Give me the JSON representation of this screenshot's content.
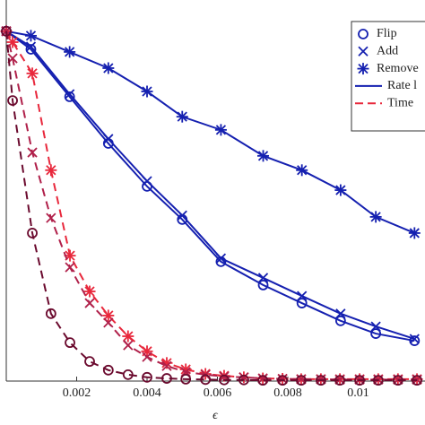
{
  "chart_data": {
    "type": "line",
    "xlabel": "ϵ",
    "xlim": [
      0,
      0.0119
    ],
    "ylim": [
      0,
      1
    ],
    "xticks": [
      0.002,
      0.004,
      0.006,
      0.008,
      0.01
    ],
    "legend": [
      {
        "label": "Flip",
        "marker": "o",
        "color": "#1520b0"
      },
      {
        "label": "Add",
        "marker": "x",
        "color": "#1520b0"
      },
      {
        "label": "Remove",
        "marker": "*",
        "color": "#1520b0"
      },
      {
        "label": "Rate l",
        "dash": false,
        "color": "#1520b0"
      },
      {
        "label": "Time",
        "dash": true,
        "color": "#e8283c"
      }
    ],
    "series": [
      {
        "marker": "*",
        "dash": false,
        "color": "#1520b0",
        "x": [
          0,
          0.0007,
          0.0018,
          0.0029,
          0.004,
          0.005,
          0.0061,
          0.0073,
          0.0084,
          0.0095,
          0.0105,
          0.0116
        ],
        "values": [
          0.929,
          0.917,
          0.874,
          0.831,
          0.769,
          0.702,
          0.667,
          0.598,
          0.56,
          0.507,
          0.436,
          0.393
        ]
      },
      {
        "marker": "x",
        "dash": false,
        "color": "#1520b0",
        "x": [
          0,
          0.0007,
          0.0018,
          0.0029,
          0.004,
          0.005,
          0.0061,
          0.0073,
          0.0084,
          0.0095,
          0.0105,
          0.0116
        ],
        "values": [
          0.929,
          0.888,
          0.762,
          0.643,
          0.531,
          0.44,
          0.326,
          0.274,
          0.226,
          0.179,
          0.145,
          0.112
        ]
      },
      {
        "marker": "o",
        "dash": false,
        "color": "#1520b0",
        "x": [
          0,
          0.0007,
          0.0018,
          0.0029,
          0.004,
          0.005,
          0.0061,
          0.0073,
          0.0084,
          0.0095,
          0.0105,
          0.0116
        ],
        "values": [
          0.929,
          0.881,
          0.755,
          0.631,
          0.517,
          0.429,
          0.317,
          0.255,
          0.207,
          0.16,
          0.126,
          0.107
        ]
      },
      {
        "marker": "*",
        "dash": true,
        "color": "#e8283c",
        "x": [
          0,
          0.00018,
          0.00074,
          0.00127,
          0.00181,
          0.00237,
          0.0029,
          0.00346,
          0.004,
          0.00456,
          0.0051,
          0.00566,
          0.00619,
          0.00675,
          0.00729,
          0.00785,
          0.00838,
          0.00894,
          0.00948,
          0.01004,
          0.01057,
          0.01113,
          0.01167
        ],
        "values": [
          0.929,
          0.9,
          0.817,
          0.56,
          0.333,
          0.238,
          0.174,
          0.119,
          0.079,
          0.048,
          0.031,
          0.019,
          0.014,
          0.01,
          0.007,
          0.006,
          0.005,
          0.005,
          0.005,
          0.005,
          0.005,
          0.005,
          0.005
        ]
      },
      {
        "marker": "x",
        "dash": true,
        "color": "#b0204a",
        "x": [
          0,
          0.00018,
          0.00074,
          0.00127,
          0.00181,
          0.00237,
          0.0029,
          0.00346,
          0.004,
          0.00456,
          0.0051,
          0.00566,
          0.00619,
          0.00675,
          0.00729,
          0.00785,
          0.00838,
          0.00894,
          0.00948,
          0.01004,
          0.01057,
          0.01113,
          0.01167
        ],
        "values": [
          0.929,
          0.857,
          0.607,
          0.433,
          0.302,
          0.207,
          0.155,
          0.095,
          0.064,
          0.04,
          0.024,
          0.017,
          0.012,
          0.01,
          0.007,
          0.006,
          0.005,
          0.005,
          0.004,
          0.004,
          0.004,
          0.004,
          0.004
        ]
      },
      {
        "marker": "o",
        "dash": true,
        "color": "#6b0a2e",
        "x": [
          0,
          0.00018,
          0.00074,
          0.00127,
          0.00181,
          0.00237,
          0.0029,
          0.00346,
          0.004,
          0.00456,
          0.0051,
          0.00566,
          0.00619,
          0.00675,
          0.00729,
          0.00785,
          0.00838,
          0.00894,
          0.00948,
          0.01004,
          0.01057,
          0.01113,
          0.01167
        ],
        "values": [
          0.929,
          0.745,
          0.393,
          0.179,
          0.102,
          0.052,
          0.029,
          0.017,
          0.01,
          0.007,
          0.005,
          0.004,
          0.003,
          0.003,
          0.002,
          0.002,
          0.002,
          0.002,
          0.002,
          0.002,
          0.002,
          0.002,
          0.002
        ]
      }
    ]
  }
}
